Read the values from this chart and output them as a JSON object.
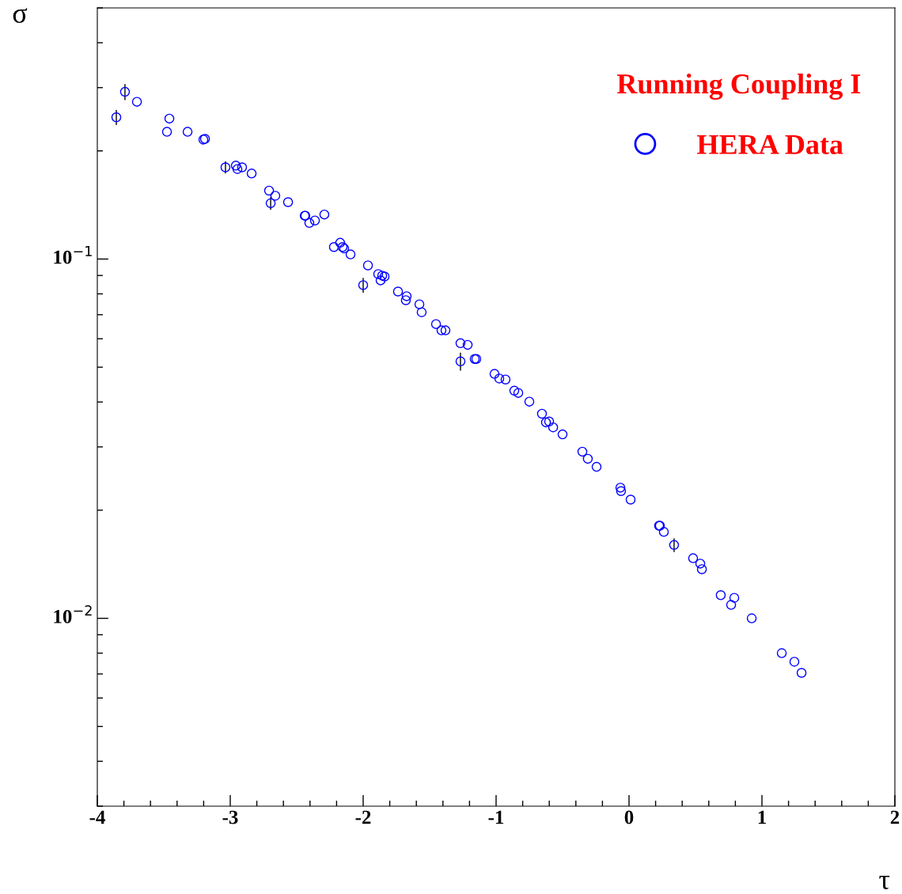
{
  "chart_data": {
    "type": "scatter",
    "xlabel": "τ",
    "ylabel": "σ",
    "legend_title": "Running Coupling I",
    "log": "y",
    "grid": false,
    "legend": "top right",
    "marker": "circle",
    "xlim": [
      -4,
      2
    ],
    "xticks": [
      -4,
      -3,
      -2,
      -1,
      0,
      1,
      2
    ],
    "ylim": [
      0.003,
      0.5
    ],
    "yticks": [
      {
        "value": 0.01,
        "label": "10$^{−2}$"
      },
      {
        "value": 0.1,
        "label": "10$^{−1}$"
      }
    ],
    "series": [
      {
        "name": "HERA Data",
        "color": "#0000ff",
        "x": [
          -3.857,
          -3.792,
          -3.702,
          -3.476,
          -3.458,
          -3.321,
          -3.202,
          -3.19,
          -3.036,
          -2.958,
          -2.946,
          -2.911,
          -2.839,
          -2.708,
          -2.696,
          -2.661,
          -2.565,
          -2.44,
          -2.435,
          -2.405,
          -2.363,
          -2.292,
          -2.22,
          -2.173,
          -2.155,
          -2.143,
          -2.095,
          -2.0,
          -1.964,
          -1.887,
          -1.869,
          -1.857,
          -1.839,
          -1.738,
          -1.679,
          -1.673,
          -1.577,
          -1.56,
          -1.452,
          -1.411,
          -1.381,
          -1.268,
          -1.268,
          -1.214,
          -1.161,
          -1.149,
          -1.012,
          -0.976,
          -0.929,
          -0.863,
          -0.833,
          -0.75,
          -0.655,
          -0.625,
          -0.601,
          -0.571,
          -0.5,
          -0.351,
          -0.31,
          -0.244,
          -0.065,
          -0.06,
          0.012,
          0.226,
          0.232,
          0.262,
          0.339,
          0.482,
          0.536,
          0.548,
          0.69,
          0.768,
          0.792,
          0.923,
          1.149,
          1.244,
          1.298
        ],
        "values": [
          0.248,
          0.292,
          0.274,
          0.226,
          0.246,
          0.226,
          0.215,
          0.216,
          0.18,
          0.182,
          0.178,
          0.18,
          0.173,
          0.155,
          0.143,
          0.15,
          0.144,
          0.132,
          0.132,
          0.126,
          0.128,
          0.133,
          0.108,
          0.111,
          0.108,
          0.107,
          0.103,
          0.0846,
          0.096,
          0.0908,
          0.0872,
          0.0899,
          0.0894,
          0.0812,
          0.0768,
          0.0788,
          0.0748,
          0.0711,
          0.0659,
          0.0633,
          0.0633,
          0.0583,
          0.0519,
          0.0577,
          0.0527,
          0.0527,
          0.0479,
          0.0465,
          0.0462,
          0.043,
          0.0424,
          0.0401,
          0.0371,
          0.0351,
          0.0353,
          0.034,
          0.0325,
          0.0291,
          0.0278,
          0.0264,
          0.0231,
          0.0226,
          0.0214,
          0.0181,
          0.0181,
          0.0174,
          0.016,
          0.0147,
          0.0142,
          0.0137,
          0.0116,
          0.0109,
          0.0114,
          0.01,
          0.008,
          0.00757,
          0.00705
        ],
        "errors": [
          0.012,
          0.015,
          null,
          null,
          null,
          null,
          null,
          null,
          0.007,
          null,
          null,
          null,
          null,
          null,
          0.006,
          null,
          null,
          null,
          null,
          null,
          null,
          null,
          null,
          null,
          null,
          null,
          null,
          0.004,
          null,
          null,
          null,
          null,
          null,
          null,
          null,
          null,
          null,
          null,
          null,
          null,
          null,
          null,
          0.003,
          null,
          null,
          null,
          null,
          null,
          null,
          null,
          null,
          null,
          null,
          null,
          null,
          null,
          null,
          null,
          null,
          null,
          null,
          null,
          null,
          null,
          null,
          null,
          0.0007,
          null,
          null,
          null,
          null,
          null,
          null,
          null,
          null,
          null,
          null
        ]
      }
    ]
  }
}
